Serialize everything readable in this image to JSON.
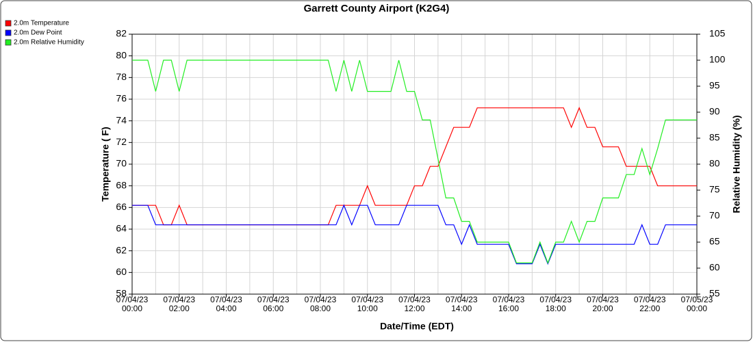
{
  "chart_data": {
    "type": "line",
    "title": "Garrett County Airport (K2G4)",
    "xlabel": "Date/Time (EDT)",
    "ylabel": "Temperature ( F)",
    "y2label": "Relative Humidity (%)",
    "legend": "top-left",
    "grid": true,
    "x": [
      "07/04/23 00:00",
      "07/04/23 00:20",
      "07/04/23 00:40",
      "07/04/23 01:00",
      "07/04/23 01:20",
      "07/04/23 01:40",
      "07/04/23 02:00",
      "07/04/23 02:20",
      "07/04/23 02:40",
      "07/04/23 03:00",
      "07/04/23 03:20",
      "07/04/23 03:40",
      "07/04/23 04:00",
      "07/04/23 04:20",
      "07/04/23 04:40",
      "07/04/23 05:00",
      "07/04/23 05:20",
      "07/04/23 05:40",
      "07/04/23 06:00",
      "07/04/23 06:20",
      "07/04/23 06:40",
      "07/04/23 07:00",
      "07/04/23 07:20",
      "07/04/23 07:40",
      "07/04/23 08:00",
      "07/04/23 08:20",
      "07/04/23 08:40",
      "07/04/23 09:00",
      "07/04/23 09:20",
      "07/04/23 09:40",
      "07/04/23 10:00",
      "07/04/23 10:20",
      "07/04/23 10:40",
      "07/04/23 11:00",
      "07/04/23 11:20",
      "07/04/23 11:40",
      "07/04/23 12:00",
      "07/04/23 12:20",
      "07/04/23 12:40",
      "07/04/23 13:00",
      "07/04/23 13:20",
      "07/04/23 13:40",
      "07/04/23 14:00",
      "07/04/23 14:20",
      "07/04/23 14:40",
      "07/04/23 15:00",
      "07/04/23 15:20",
      "07/04/23 15:40",
      "07/04/23 16:00",
      "07/04/23 16:20",
      "07/04/23 16:40",
      "07/04/23 17:00",
      "07/04/23 17:20",
      "07/04/23 17:40",
      "07/04/23 18:00",
      "07/04/23 18:20",
      "07/04/23 18:40",
      "07/04/23 19:00",
      "07/04/23 19:20",
      "07/04/23 19:40",
      "07/04/23 20:00",
      "07/04/23 20:20",
      "07/04/23 20:40",
      "07/04/23 21:00",
      "07/04/23 21:20",
      "07/04/23 21:40",
      "07/04/23 22:00",
      "07/04/23 22:20",
      "07/04/23 22:40",
      "07/04/23 23:00",
      "07/04/23 23:20",
      "07/04/23 23:40",
      "07/05/23 00:00"
    ],
    "series": [
      {
        "name": "2.0m Temperature",
        "color": "#ff0000",
        "axis": "y",
        "values": [
          66.2,
          66.2,
          66.2,
          66.2,
          64.4,
          64.4,
          66.2,
          64.4,
          64.4,
          64.4,
          64.4,
          64.4,
          64.4,
          64.4,
          64.4,
          64.4,
          64.4,
          64.4,
          64.4,
          64.4,
          64.4,
          64.4,
          64.4,
          64.4,
          64.4,
          64.4,
          66.2,
          66.2,
          66.2,
          66.2,
          68,
          66.2,
          66.2,
          66.2,
          66.2,
          66.2,
          68,
          68,
          69.8,
          69.8,
          71.6,
          73.4,
          73.4,
          73.4,
          75.2,
          75.2,
          75.2,
          75.2,
          75.2,
          75.2,
          75.2,
          75.2,
          75.2,
          75.2,
          75.2,
          75.2,
          73.4,
          75.2,
          73.4,
          73.4,
          71.6,
          71.6,
          71.6,
          69.8,
          69.8,
          69.8,
          69.8,
          68,
          68,
          68,
          68,
          68,
          68
        ]
      },
      {
        "name": "2.0m Dew Point",
        "color": "#0000ff",
        "axis": "y",
        "values": [
          66.2,
          66.2,
          66.2,
          64.4,
          64.4,
          64.4,
          64.4,
          64.4,
          64.4,
          64.4,
          64.4,
          64.4,
          64.4,
          64.4,
          64.4,
          64.4,
          64.4,
          64.4,
          64.4,
          64.4,
          64.4,
          64.4,
          64.4,
          64.4,
          64.4,
          64.4,
          64.4,
          66.2,
          64.4,
          66.2,
          66.2,
          64.4,
          64.4,
          64.4,
          64.4,
          66.2,
          66.2,
          66.2,
          66.2,
          66.2,
          64.4,
          64.4,
          62.6,
          64.4,
          62.6,
          62.6,
          62.6,
          62.6,
          62.6,
          60.8,
          60.8,
          60.8,
          62.6,
          60.8,
          62.6,
          62.6,
          62.6,
          62.6,
          62.6,
          62.6,
          62.6,
          62.6,
          62.6,
          62.6,
          62.6,
          64.4,
          62.6,
          62.6,
          64.4,
          64.4,
          64.4,
          64.4,
          64.4
        ]
      },
      {
        "name": "2.0m Relative Humidity",
        "color": "#22ee22",
        "axis": "y2",
        "values": [
          100,
          100,
          100,
          94,
          100,
          100,
          94,
          100,
          100,
          100,
          100,
          100,
          100,
          100,
          100,
          100,
          100,
          100,
          100,
          100,
          100,
          100,
          100,
          100,
          100,
          100,
          94,
          100,
          94,
          100,
          94,
          94,
          94,
          94,
          100,
          94,
          94,
          88.5,
          88.5,
          81,
          73.5,
          73.5,
          69,
          69,
          65,
          65,
          65,
          65,
          65,
          61,
          61,
          61,
          65,
          61,
          65,
          65,
          69,
          65,
          69,
          69,
          73.5,
          73.5,
          73.5,
          78,
          78,
          83,
          78,
          83,
          88.5,
          88.5,
          88.5,
          88.5,
          88.5
        ]
      }
    ],
    "xlim": [
      "07/04/23 00:00",
      "07/05/23 00:00"
    ],
    "xticks": [
      "07/04/23\n00:00",
      "07/04/23\n02:00",
      "07/04/23\n04:00",
      "07/04/23\n06:00",
      "07/04/23\n08:00",
      "07/04/23\n10:00",
      "07/04/23\n12:00",
      "07/04/23\n14:00",
      "07/04/23\n16:00",
      "07/04/23\n18:00",
      "07/04/23\n20:00",
      "07/04/23\n22:00",
      "07/05/23\n00:00"
    ],
    "xminorticks": [
      "07/04/23 01:00",
      "07/04/23 03:00",
      "07/04/23 05:00",
      "07/04/23 07:00",
      "07/04/23 09:00",
      "07/04/23 11:00",
      "07/04/23 13:00",
      "07/04/23 15:00",
      "07/04/23 17:00",
      "07/04/23 19:00",
      "07/04/23 21:00",
      "07/04/23 23:00"
    ],
    "ylim": [
      58,
      82
    ],
    "yticks": [
      58,
      60,
      62,
      64,
      66,
      68,
      70,
      72,
      74,
      76,
      78,
      80,
      82
    ],
    "y2lim": [
      55,
      105
    ],
    "y2ticks": [
      55,
      60,
      65,
      70,
      75,
      80,
      85,
      90,
      95,
      100,
      105
    ]
  }
}
